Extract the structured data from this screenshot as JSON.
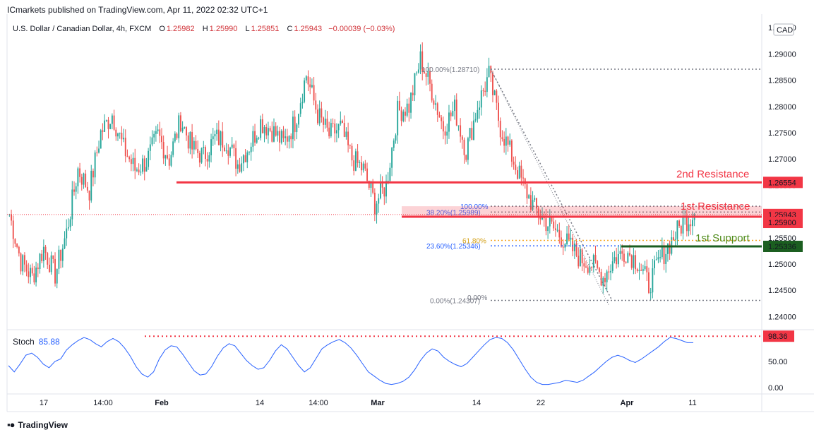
{
  "publisher": "ICmarkets published on TradingView.com, Apr 11, 2022 02:32 UTC+1",
  "legend": {
    "symbol": "U.S. Dollar / Canadian Dollar, 4h, FXCM",
    "open_label": "O",
    "open": "1.25982",
    "high_label": "H",
    "high": "1.25990",
    "low_label": "L",
    "low": "1.25851",
    "close_label": "C",
    "close": "1.25943",
    "change": "−0.00039 (−0.03%)"
  },
  "currency": "CAD",
  "stoch": {
    "label": "Stoch",
    "value": "85.88"
  },
  "footer": {
    "brand": "TradingView"
  },
  "colors": {
    "up": "#26a69a",
    "down": "#ef5350",
    "resistance": "#f23645",
    "support": "#1b5e20",
    "stoch_line": "#2962ff"
  },
  "chart_data": {
    "type": "candlestick",
    "instrument": "USDCAD",
    "timeframe": "4h",
    "y_axis": {
      "ticks": [
        1.24,
        1.245,
        1.25,
        1.255,
        1.26,
        1.265,
        1.27,
        1.275,
        1.28,
        1.285,
        1.29,
        1.295
      ],
      "tick_labels": [
        "1.24000",
        "1.24500",
        "1.25000",
        "1.25500",
        "1.26000",
        "1.26500",
        "1.27000",
        "1.27500",
        "1.28000",
        "1.28500",
        "1.29000",
        "1.29500"
      ],
      "range": [
        1.2375,
        1.2965
      ]
    },
    "x_axis": {
      "tick_labels": [
        "17",
        "14:00",
        "Feb",
        "14",
        "14:00",
        "Mar",
        "14",
        "22",
        "Apr",
        "11"
      ]
    },
    "price_path": [
      [
        "Jan 17",
        1.2595
      ],
      [
        "Jan 18",
        1.2505
      ],
      [
        "Jan 19",
        1.2475
      ],
      [
        "Jan 20",
        1.253
      ],
      [
        "Jan 21",
        1.248
      ],
      [
        "Jan 24",
        1.256
      ],
      [
        "Jan 25",
        1.268
      ],
      [
        "Jan 26",
        1.264
      ],
      [
        "Jan 27",
        1.275
      ],
      [
        "Jan 28",
        1.2785
      ],
      [
        "Jan 31",
        1.272
      ],
      [
        "Feb 1",
        1.268
      ],
      [
        "Feb 2",
        1.2695
      ],
      [
        "Feb 3",
        1.2745
      ],
      [
        "Feb 4",
        1.27
      ],
      [
        "Feb 7",
        1.2775
      ],
      [
        "Feb 8",
        1.272
      ],
      [
        "Feb 9",
        1.2705
      ],
      [
        "Feb 10",
        1.274
      ],
      [
        "Feb 11",
        1.2735
      ],
      [
        "Feb 14",
        1.269
      ],
      [
        "Feb 15",
        1.2725
      ],
      [
        "Feb 16",
        1.277
      ],
      [
        "Feb 17",
        1.2755
      ],
      [
        "Feb 18",
        1.273
      ],
      [
        "Feb 21",
        1.277
      ],
      [
        "Feb 22",
        1.286
      ],
      [
        "Feb 23",
        1.2785
      ],
      [
        "Feb 24",
        1.2745
      ],
      [
        "Feb 25",
        1.276
      ],
      [
        "Feb 28",
        1.27
      ],
      [
        "Mar 1",
        1.268
      ],
      [
        "Mar 2",
        1.2615
      ],
      [
        "Mar 3",
        1.265
      ],
      [
        "Mar 4",
        1.279
      ],
      [
        "Mar 7",
        1.28
      ],
      [
        "Mar 8",
        1.289
      ],
      [
        "Mar 9",
        1.283
      ],
      [
        "Mar 10",
        1.276
      ],
      [
        "Mar 11",
        1.2795
      ],
      [
        "Mar 14",
        1.2715
      ],
      [
        "Mar 15",
        1.28
      ],
      [
        "Mar 16",
        1.286
      ],
      [
        "Mar 17",
        1.276
      ],
      [
        "Mar 18",
        1.2705
      ],
      [
        "Mar 21",
        1.265
      ],
      [
        "Mar 22",
        1.2605
      ],
      [
        "Mar 23",
        1.258
      ],
      [
        "Mar 24",
        1.256
      ],
      [
        "Mar 25",
        1.2535
      ],
      [
        "Mar 28",
        1.251
      ],
      [
        "Mar 29",
        1.25
      ],
      [
        "Mar 30",
        1.2475
      ],
      [
        "Mar 31",
        1.251
      ],
      [
        "Apr 1",
        1.2525
      ],
      [
        "Apr 4",
        1.2505
      ],
      [
        "Apr 5",
        1.246
      ],
      [
        "Apr 6",
        1.251
      ],
      [
        "Apr 7",
        1.2545
      ],
      [
        "Apr 8",
        1.258
      ],
      [
        "Apr 11",
        1.2594
      ]
    ],
    "levels": [
      {
        "name": "2nd Resistance",
        "price": 1.26554,
        "price_label": "1.26554"
      },
      {
        "name": "1st Resistance",
        "price": 1.259,
        "price_label": "1.25900"
      },
      {
        "name": "1st Support",
        "price": 1.25336,
        "price_label": "1.25336"
      }
    ],
    "current_price": {
      "price": 1.25943,
      "label": "1.25943"
    },
    "fibonacci": [
      {
        "label": "100.00%(1.28710)",
        "price": 1.2871
      },
      {
        "label": "0.00%(1.24307)",
        "price": 1.24307
      },
      {
        "label": "100.00%",
        "price": 1.261
      },
      {
        "label": "38.20%(1.25989)",
        "price": 1.25989
      },
      {
        "label": "61.80%",
        "price": 1.2545
      },
      {
        "label": "23.60%(1.25346)",
        "price": 1.25346
      },
      {
        "label": "0.00%",
        "price": 1.2437
      }
    ],
    "stochastic": {
      "name": "Stoch",
      "current": 85.88,
      "y_ticks": [
        0,
        50
      ],
      "y_tick_labels": [
        "0.00",
        "50.00"
      ],
      "overbought_line": 98.36,
      "overbought_label": "98.36",
      "values": [
        42,
        30,
        45,
        62,
        66,
        58,
        45,
        38,
        50,
        55,
        72,
        82,
        90,
        96,
        92,
        84,
        78,
        88,
        94,
        88,
        76,
        60,
        40,
        26,
        20,
        30,
        55,
        72,
        80,
        78,
        64,
        48,
        32,
        24,
        26,
        40,
        60,
        76,
        84,
        80,
        66,
        52,
        42,
        35,
        38,
        52,
        70,
        82,
        74,
        58,
        42,
        30,
        38,
        56,
        74,
        82,
        88,
        92,
        86,
        76,
        62,
        46,
        30,
        22,
        14,
        8,
        6,
        8,
        12,
        20,
        34,
        52,
        66,
        74,
        70,
        58,
        50,
        44,
        40,
        46,
        58,
        70,
        82,
        92,
        96,
        94,
        86,
        72,
        54,
        36,
        20,
        10,
        6,
        6,
        8,
        10,
        14,
        12,
        10,
        14,
        22,
        30,
        40,
        50,
        58,
        62,
        58,
        52,
        48,
        54,
        62,
        70,
        78,
        88,
        96,
        94,
        90,
        86,
        85.88
      ]
    }
  }
}
